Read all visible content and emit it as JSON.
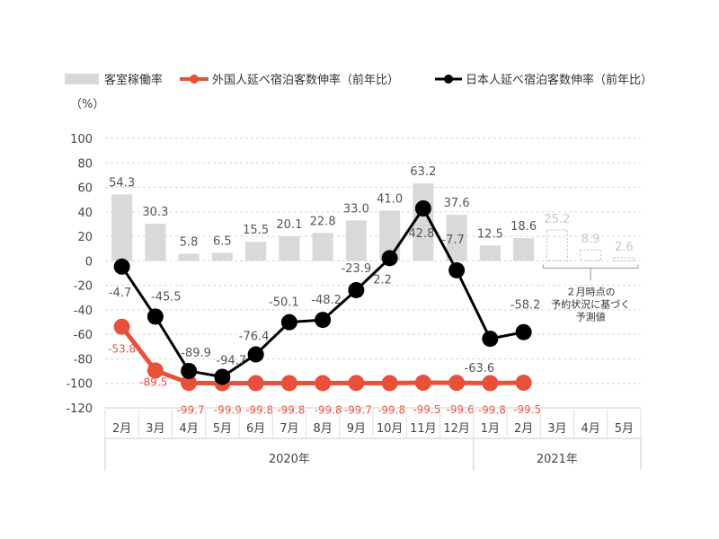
{
  "chart_data": {
    "type": "bar+line",
    "unit_label": "（%）",
    "legend": [
      {
        "name": "客室稼働率",
        "color": "#d9d9d9"
      },
      {
        "name": "外国人延べ宿泊客数伸率（前年比）",
        "color": "#e8503a"
      },
      {
        "name": "日本人延べ宿泊客数伸率（前年比）",
        "color": "#000000"
      }
    ],
    "categories": [
      "2月",
      "3月",
      "4月",
      "5月",
      "6月",
      "7月",
      "8月",
      "9月",
      "10月",
      "11月",
      "12月",
      "1月",
      "2月",
      "3月",
      "4月",
      "5月"
    ],
    "year_groups": [
      {
        "label": "2020年",
        "start": 0,
        "end": 10
      },
      {
        "label": "2021年",
        "start": 11,
        "end": 15
      }
    ],
    "ylim": [
      -120,
      100
    ],
    "yticks": [
      100,
      80,
      60,
      40,
      20,
      0,
      -20,
      -40,
      -60,
      -80,
      -100,
      -120
    ],
    "bars": {
      "values": [
        54.3,
        30.3,
        5.8,
        6.5,
        15.5,
        20.1,
        22.8,
        33.0,
        41.0,
        63.2,
        37.6,
        12.5,
        18.6,
        25.2,
        8.9,
        2.6
      ],
      "labels": [
        "54.3",
        "30.3",
        "5.8",
        "6.5",
        "15.5",
        "20.1",
        "22.8",
        "33.0",
        "41.0",
        "63.2",
        "37.6",
        "12.5",
        "18.6",
        "25.2",
        "8.9",
        "2.6"
      ],
      "forecast_from_index": 13
    },
    "japanese": {
      "values": [
        -4.7,
        -45.5,
        -89.9,
        -94.7,
        -76.4,
        -50.1,
        -48.2,
        -23.9,
        2.2,
        42.8,
        -7.7,
        -63.6,
        -58.2
      ],
      "labels": [
        "-4.7",
        "-45.5",
        "-89.9",
        "-94.7",
        "-76.4",
        "-50.1",
        "-48.2",
        "-23.9",
        "2.2",
        "42.8",
        "-7.7",
        "-63.6",
        "-58.2"
      ],
      "color": "#000000"
    },
    "foreign": {
      "values": [
        -53.8,
        -89.5,
        -99.7,
        -99.9,
        -99.8,
        -99.8,
        -99.8,
        -99.7,
        -99.8,
        -99.5,
        -99.6,
        -99.8,
        -99.5
      ],
      "labels": [
        "-53.8",
        "-89.5",
        "-99.7",
        "-99.9",
        "-99.8",
        "-99.8",
        "-99.8",
        "-99.7",
        "-99.8",
        "-99.5",
        "-99.6",
        "-99.8",
        "-99.5"
      ],
      "color": "#e8503a"
    },
    "forecast_note": [
      "２月時点の",
      "予約状況に基づく",
      "予測値"
    ]
  }
}
